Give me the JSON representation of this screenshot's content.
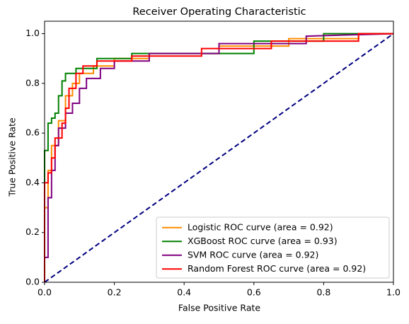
{
  "chart_data": {
    "type": "line",
    "title": "Receiver Operating Characteristic",
    "x_label": "False Positive Rate",
    "y_label": "True Positive Rate",
    "xlim": [
      0,
      1
    ],
    "ylim": [
      0,
      1.05
    ],
    "xticks": [
      {
        "value": 0,
        "label": "0.0"
      },
      0.2,
      0.4,
      0.6,
      0.8,
      {
        "value": 1,
        "label": "1.0"
      }
    ],
    "yticks": [
      {
        "value": 0,
        "label": "0.0"
      },
      0.2,
      0.4,
      0.6,
      0.8,
      {
        "value": 1,
        "label": "1.0"
      }
    ],
    "legend": "lower right",
    "series": [
      {
        "name": "Logistic ROC curve (area = 0.92)",
        "color": "#ff8c00",
        "x": [
          0,
          0,
          0.01,
          0.01,
          0.02,
          0.02,
          0.04,
          0.04,
          0.06,
          0.06,
          0.08,
          0.08,
          0.1,
          0.1,
          0.14,
          0.14,
          0.2,
          0.2,
          0.3,
          0.3,
          0.5,
          0.5,
          0.7,
          0.7,
          0.9,
          0.9,
          1
        ],
        "values": [
          0,
          0.3,
          0.3,
          0.45,
          0.45,
          0.55,
          0.55,
          0.65,
          0.65,
          0.75,
          0.75,
          0.8,
          0.8,
          0.84,
          0.84,
          0.87,
          0.87,
          0.9,
          0.9,
          0.92,
          0.92,
          0.95,
          0.95,
          0.98,
          0.98,
          1,
          1
        ]
      },
      {
        "name": "XGBoost ROC curve (area = 0.93)",
        "color": "#008000",
        "x": [
          0,
          0,
          0.01,
          0.01,
          0.02,
          0.02,
          0.03,
          0.03,
          0.04,
          0.04,
          0.05,
          0.05,
          0.06,
          0.06,
          0.09,
          0.09,
          0.15,
          0.15,
          0.25,
          0.25,
          0.6,
          0.6,
          0.8,
          0.8,
          1
        ],
        "values": [
          0,
          0.53,
          0.53,
          0.64,
          0.64,
          0.66,
          0.66,
          0.68,
          0.68,
          0.75,
          0.75,
          0.81,
          0.81,
          0.84,
          0.84,
          0.86,
          0.86,
          0.9,
          0.9,
          0.92,
          0.92,
          0.97,
          0.97,
          1,
          1
        ]
      },
      {
        "name": "SVM ROC curve (area = 0.92)",
        "color": "#800080",
        "x": [
          0,
          0,
          0.01,
          0.01,
          0.02,
          0.02,
          0.03,
          0.03,
          0.04,
          0.04,
          0.06,
          0.06,
          0.08,
          0.08,
          0.1,
          0.1,
          0.12,
          0.12,
          0.16,
          0.16,
          0.2,
          0.2,
          0.3,
          0.3,
          0.5,
          0.5,
          0.75,
          0.75,
          1
        ],
        "values": [
          0,
          0.1,
          0.1,
          0.34,
          0.34,
          0.45,
          0.45,
          0.55,
          0.55,
          0.62,
          0.62,
          0.68,
          0.68,
          0.72,
          0.72,
          0.78,
          0.78,
          0.82,
          0.82,
          0.86,
          0.86,
          0.89,
          0.89,
          0.92,
          0.92,
          0.96,
          0.96,
          0.99,
          1
        ]
      },
      {
        "name": "Random Forest ROC curve (area = 0.92)",
        "color": "#ff0000",
        "x": [
          0,
          0,
          0.01,
          0.01,
          0.02,
          0.02,
          0.03,
          0.03,
          0.05,
          0.05,
          0.06,
          0.06,
          0.07,
          0.07,
          0.09,
          0.09,
          0.11,
          0.11,
          0.15,
          0.15,
          0.25,
          0.25,
          0.45,
          0.45,
          0.65,
          0.65,
          0.9,
          0.9,
          1
        ],
        "values": [
          0,
          0.4,
          0.4,
          0.44,
          0.44,
          0.5,
          0.5,
          0.58,
          0.58,
          0.64,
          0.64,
          0.7,
          0.7,
          0.78,
          0.78,
          0.84,
          0.84,
          0.87,
          0.87,
          0.89,
          0.89,
          0.91,
          0.91,
          0.94,
          0.94,
          0.97,
          0.97,
          1,
          1
        ]
      },
      {
        "color": "#000080",
        "linestyle": "--",
        "x": [
          0,
          1
        ],
        "values": [
          0,
          1
        ]
      }
    ]
  }
}
